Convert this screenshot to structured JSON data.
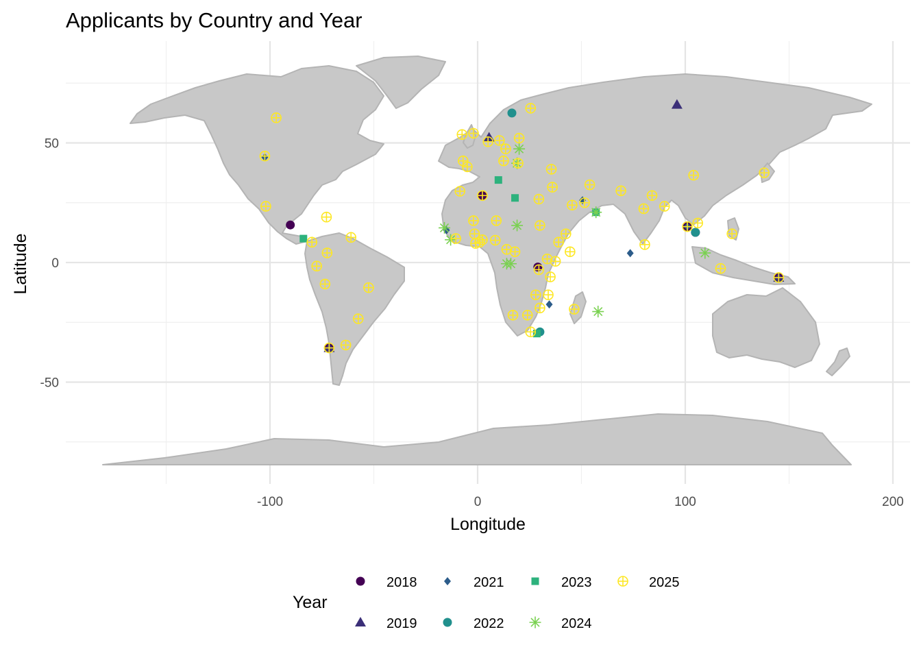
{
  "chart_data": {
    "type": "scatter",
    "title": "Applicants by Country and Year",
    "xlabel": "Longitude",
    "ylabel": "Latitude",
    "xlim": [
      -180,
      200
    ],
    "ylim": [
      -90,
      85
    ],
    "x_ticks": [
      -100,
      0,
      100,
      200
    ],
    "y_ticks": [
      -50,
      0,
      50
    ],
    "x_tick_labels": [
      "-100",
      "0",
      "100",
      "200"
    ],
    "y_tick_labels": [
      "-50",
      "0",
      "50"
    ],
    "grid": true,
    "basemap": "world countries",
    "legend": {
      "title": "Year",
      "position": "bottom"
    },
    "series": [
      {
        "name": "2018",
        "shape": "circle",
        "color": "#440154",
        "points": [
          [
            -90.2,
            15.7
          ],
          [
            104.9,
            12.6
          ],
          [
            101.0,
            15.0
          ],
          [
            2.3,
            28.0
          ],
          [
            -71.5,
            -35.7
          ],
          [
            29.0,
            -1.9
          ],
          [
            145.0,
            -6.3
          ]
        ]
      },
      {
        "name": "2019",
        "shape": "triangle",
        "color": "#3b2f78",
        "points": [
          [
            96.0,
            66.0
          ],
          [
            5.5,
            52.3
          ],
          [
            -71.5,
            -35.7
          ],
          [
            145.0,
            -6.3
          ]
        ]
      },
      {
        "name": "2021",
        "shape": "diamond",
        "color": "#2c5c8a",
        "points": [
          [
            73.5,
            3.9
          ],
          [
            -102.5,
            44.0
          ],
          [
            -15.0,
            13.5
          ],
          [
            50.5,
            26.0
          ],
          [
            101.0,
            15.0
          ],
          [
            34.5,
            -17.5
          ]
        ]
      },
      {
        "name": "2022",
        "shape": "circle",
        "color": "#21908d",
        "points": [
          [
            16.5,
            62.5
          ],
          [
            104.9,
            12.6
          ],
          [
            30.0,
            -29.0
          ]
        ]
      },
      {
        "name": "2023",
        "shape": "square",
        "color": "#2db27d",
        "points": [
          [
            18.0,
            27.0
          ],
          [
            -83.9,
            10.0
          ],
          [
            28.5,
            -29.7
          ],
          [
            10.0,
            34.5
          ],
          [
            57.0,
            21.0
          ]
        ]
      },
      {
        "name": "2024",
        "shape": "asterisk",
        "color": "#7ad151",
        "points": [
          [
            19.0,
            15.5
          ],
          [
            58.0,
            -20.5
          ],
          [
            109.5,
            4.0
          ],
          [
            57.0,
            21.0
          ],
          [
            -13.0,
            9.5
          ],
          [
            14.0,
            -0.5
          ],
          [
            16.0,
            -0.5
          ],
          [
            20.0,
            47.5
          ],
          [
            19.0,
            41.5
          ],
          [
            -16.0,
            14.5
          ]
        ]
      },
      {
        "name": "2025",
        "shape": "crossed-circle",
        "color": "#fde725",
        "points": [
          [
            -97.0,
            60.5
          ],
          [
            -102.5,
            44.5
          ],
          [
            -102.0,
            23.5
          ],
          [
            -72.8,
            19.0
          ],
          [
            -79.8,
            8.5
          ],
          [
            -61.0,
            10.5
          ],
          [
            -77.5,
            -1.5
          ],
          [
            -72.5,
            4.0
          ],
          [
            -73.5,
            -9.0
          ],
          [
            -52.5,
            -10.5
          ],
          [
            -57.5,
            -23.5
          ],
          [
            -71.5,
            -35.7
          ],
          [
            -63.5,
            -34.5
          ],
          [
            -7.5,
            53.5
          ],
          [
            -2.0,
            54.0
          ],
          [
            -5.0,
            40.0
          ],
          [
            -7.0,
            42.5
          ],
          [
            5.0,
            50.5
          ],
          [
            10.5,
            51.0
          ],
          [
            13.5,
            47.5
          ],
          [
            12.5,
            42.5
          ],
          [
            20.0,
            52.0
          ],
          [
            19.5,
            41.5
          ],
          [
            25.5,
            64.5
          ],
          [
            35.5,
            39.0
          ],
          [
            36.0,
            31.5
          ],
          [
            29.5,
            26.5
          ],
          [
            2.3,
            28.0
          ],
          [
            -8.5,
            29.8
          ],
          [
            -2.0,
            17.5
          ],
          [
            -1.5,
            12.0
          ],
          [
            -10.5,
            10.0
          ],
          [
            -1.0,
            8.0
          ],
          [
            1.0,
            8.5
          ],
          [
            2.3,
            9.5
          ],
          [
            8.5,
            9.3
          ],
          [
            9.0,
            17.5
          ],
          [
            14.0,
            5.5
          ],
          [
            18.0,
            4.5
          ],
          [
            30.0,
            15.5
          ],
          [
            39.0,
            8.5
          ],
          [
            44.5,
            4.5
          ],
          [
            45.5,
            24.0
          ],
          [
            54.0,
            32.5
          ],
          [
            51.5,
            25.0
          ],
          [
            42.5,
            12.0
          ],
          [
            33.5,
            1.5
          ],
          [
            37.5,
            0.5
          ],
          [
            35.0,
            -6.0
          ],
          [
            29.5,
            -3.0
          ],
          [
            28.0,
            -13.5
          ],
          [
            34.0,
            -13.5
          ],
          [
            30.0,
            -19.0
          ],
          [
            24.0,
            -22.0
          ],
          [
            17.0,
            -22.0
          ],
          [
            25.5,
            -29.0
          ],
          [
            46.5,
            -19.5
          ],
          [
            69.0,
            30.0
          ],
          [
            80.0,
            22.5
          ],
          [
            84.0,
            28.0
          ],
          [
            90.0,
            23.5
          ],
          [
            80.5,
            7.5
          ],
          [
            104.0,
            36.5
          ],
          [
            106.0,
            16.5
          ],
          [
            101.0,
            15.0
          ],
          [
            122.5,
            12.0
          ],
          [
            117.0,
            -2.5
          ],
          [
            138.0,
            37.5
          ],
          [
            145.0,
            -6.3
          ]
        ]
      }
    ]
  }
}
